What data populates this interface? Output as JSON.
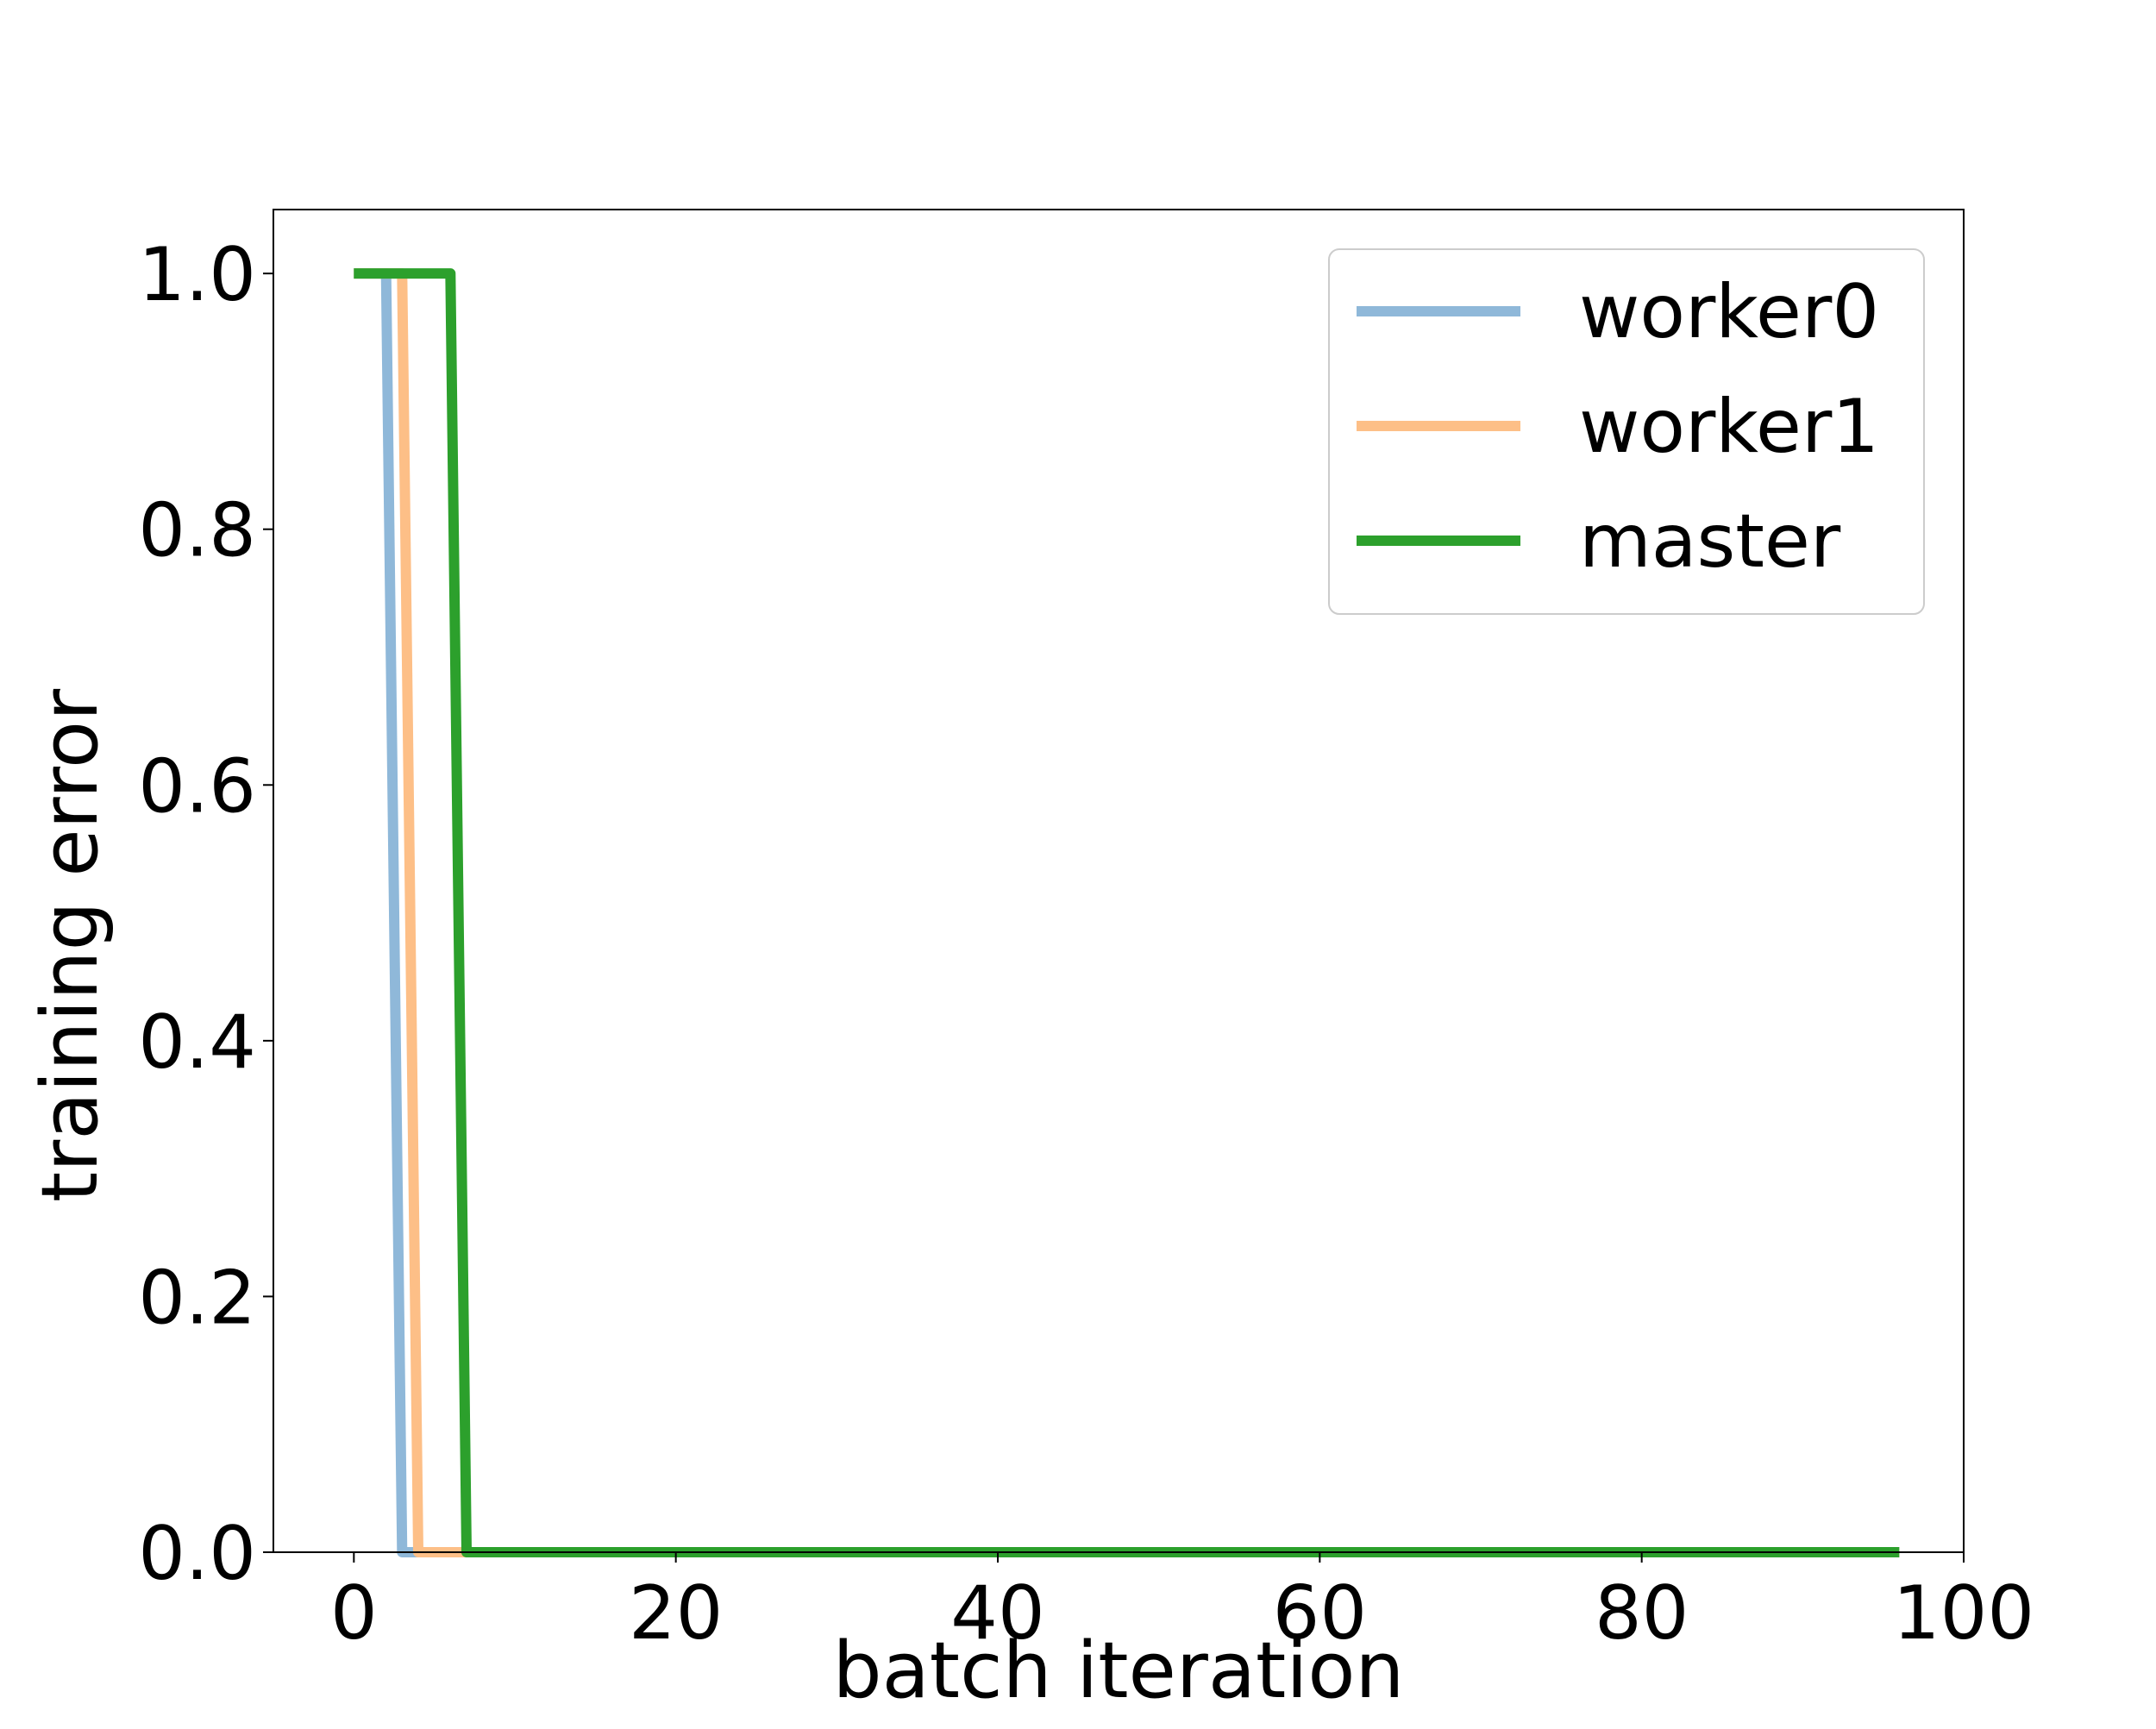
{
  "chart_data": {
    "type": "line",
    "title": "",
    "xlabel": "batch iteration",
    "ylabel": "training error",
    "xlim": [
      -5,
      100
    ],
    "ylim": [
      0,
      1.05
    ],
    "x_ticks": [
      0,
      20,
      40,
      60,
      80,
      100
    ],
    "x_tick_labels": [
      "0",
      "20",
      "40",
      "60",
      "80",
      "100"
    ],
    "y_ticks": [
      0.0,
      0.2,
      0.4,
      0.6,
      0.8,
      1.0
    ],
    "y_tick_labels": [
      "0.0",
      "0.2",
      "0.4",
      "0.6",
      "0.8",
      "1.0"
    ],
    "grid": false,
    "legend_position": "top-right",
    "series": [
      {
        "name": "worker0",
        "color": "#8fb8d9",
        "x": [
          0,
          2,
          3,
          96
        ],
        "y": [
          1.0,
          1.0,
          0.0,
          0.0
        ]
      },
      {
        "name": "worker1",
        "color": "#fdbf87",
        "x": [
          0,
          3,
          4,
          96
        ],
        "y": [
          1.0,
          1.0,
          0.0,
          0.0
        ]
      },
      {
        "name": "master",
        "color": "#2ca02c",
        "x": [
          0,
          6,
          7,
          96
        ],
        "y": [
          1.0,
          1.0,
          0.0,
          0.0
        ]
      }
    ]
  }
}
